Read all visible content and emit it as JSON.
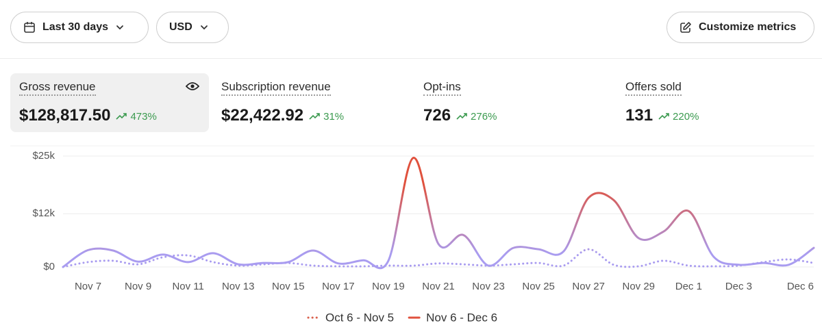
{
  "toolbar": {
    "date_range": "Last 30 days",
    "currency": "USD",
    "customize": "Customize metrics"
  },
  "metrics": [
    {
      "label": "Gross revenue",
      "value": "$128,817.50",
      "change": "473%"
    },
    {
      "label": "Subscription revenue",
      "value": "$22,422.92",
      "change": "31%"
    },
    {
      "label": "Opt-ins",
      "value": "726",
      "change": "276%"
    },
    {
      "label": "Offers sold",
      "value": "131",
      "change": "220%"
    }
  ],
  "chart_data": {
    "type": "line",
    "categories": [
      null,
      "Nov 7",
      null,
      "Nov 9",
      null,
      "Nov 11",
      null,
      "Nov 13",
      null,
      "Nov 15",
      null,
      "Nov 17",
      null,
      "Nov 19",
      null,
      "Nov 21",
      null,
      "Nov 23",
      null,
      "Nov 25",
      null,
      "Nov 27",
      null,
      "Nov 29",
      null,
      "Dec 1",
      null,
      "Dec 3",
      null,
      null,
      "Dec 6"
    ],
    "series": [
      {
        "name": "Oct 6 - Nov 5",
        "color": "#d9604c",
        "style": "dotted",
        "values": [
          0,
          1100,
          1400,
          600,
          2200,
          2600,
          1100,
          300,
          600,
          900,
          300,
          150,
          150,
          300,
          300,
          800,
          600,
          300,
          600,
          900,
          300,
          4000,
          500,
          150,
          1400,
          300,
          150,
          300,
          1100,
          1700,
          900
        ]
      },
      {
        "name": "Nov 6 - Dec 6",
        "color": "#e0513d",
        "style": "solid",
        "values": [
          0,
          3800,
          3700,
          1200,
          2800,
          1100,
          3100,
          600,
          900,
          1100,
          3700,
          800,
          1500,
          1400,
          24600,
          5200,
          7200,
          300,
          4300,
          4000,
          3500,
          15600,
          15100,
          6500,
          8000,
          12600,
          2300,
          500,
          900,
          500,
          4300
        ]
      }
    ],
    "ylim": [
      0,
      25000
    ],
    "yticks": [
      {
        "value": 0,
        "label": "$0"
      },
      {
        "value": 12000,
        "label": "$12k"
      },
      {
        "value": 25000,
        "label": "$25k"
      }
    ],
    "grid": true,
    "legend": "bottom"
  }
}
